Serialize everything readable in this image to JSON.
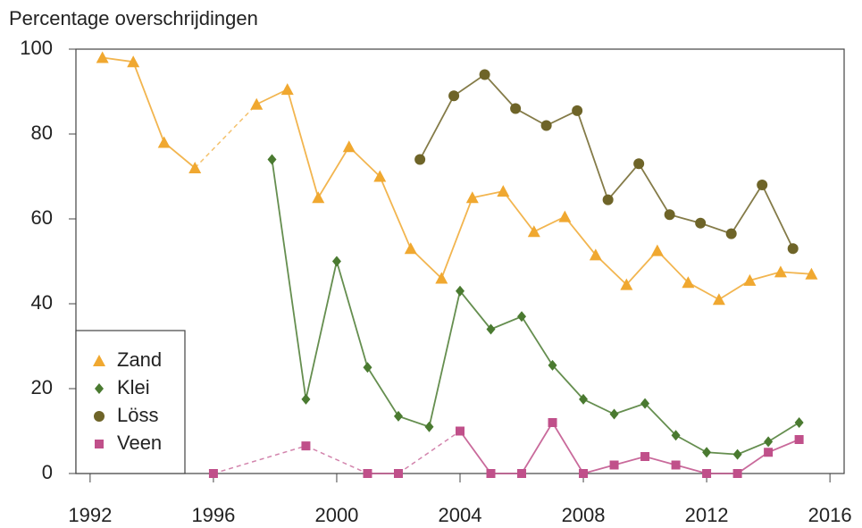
{
  "chart_data": {
    "type": "line",
    "y_label": "Percentage overschrijdingen",
    "xlim": [
      1991.54,
      2016.46
    ],
    "xticks": [
      1992,
      1996,
      2000,
      2004,
      2008,
      2012,
      2016
    ],
    "ylim": [
      0,
      100
    ],
    "yticks": [
      0,
      20,
      40,
      60,
      80,
      100
    ],
    "legend": "bottom-left",
    "series": [
      {
        "name": "Zand",
        "color": "#f0a830",
        "marker": "triangle",
        "x": [
          1992.4,
          1993.4,
          1994.4,
          1995.4,
          1996.4,
          1997.4,
          1998.4,
          1999.4,
          2000.4,
          2001.4,
          2002.4,
          2003.4,
          2004.4,
          2005.4,
          2006.4,
          2007.4,
          2008.4,
          2009.4,
          2010.4,
          2011.4,
          2012.4,
          2013.4,
          2014.4,
          2015.4
        ],
        "values": [
          98,
          97,
          78,
          72,
          null,
          87,
          90.5,
          65,
          77,
          70,
          53,
          46,
          65,
          66.5,
          57,
          60.5,
          51.5,
          44.5,
          52.5,
          45,
          41,
          45.5,
          47.5,
          47
        ]
      },
      {
        "name": "Klei",
        "color": "#4a7a30",
        "marker": "diamond",
        "x": [
          1997.9,
          1999,
          2000,
          2001,
          2002,
          2003,
          2004,
          2005,
          2006,
          2007,
          2008,
          2009,
          2010,
          2011,
          2012,
          2013,
          2014,
          2015
        ],
        "values": [
          74,
          17.5,
          50,
          25,
          13.5,
          11,
          43,
          34,
          37,
          25.5,
          17.5,
          14,
          16.5,
          9,
          5,
          4.5,
          7.5,
          12
        ]
      },
      {
        "name": "Löss",
        "color": "#6e6428",
        "marker": "circle",
        "x": [
          2002.7,
          2003.8,
          2004.8,
          2005.8,
          2006.8,
          2007.8,
          2008.8,
          2009.8,
          2010.8,
          2011.8,
          2012.8,
          2013.8,
          2014.8
        ],
        "values": [
          74,
          89,
          94,
          86,
          82,
          85.5,
          64.5,
          73,
          61,
          59,
          56.5,
          68,
          53
        ]
      },
      {
        "name": "Veen",
        "color": "#c0508a",
        "marker": "square",
        "x": [
          1996,
          1997,
          1998,
          1999,
          2000,
          2001,
          2002,
          2003,
          2004,
          2005,
          2006,
          2007,
          2008,
          2009,
          2010,
          2011,
          2012,
          2013,
          2014,
          2015
        ],
        "values": [
          0,
          null,
          null,
          6.5,
          null,
          0,
          0,
          null,
          10,
          0,
          0,
          12,
          0,
          2,
          4,
          2,
          0,
          0,
          5,
          8
        ]
      }
    ]
  }
}
